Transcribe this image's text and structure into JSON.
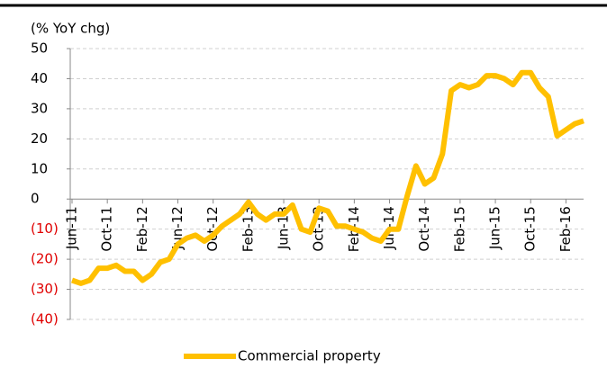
{
  "chart_data": {
    "type": "line",
    "title": "(% YoY chg)",
    "categories": [
      "Jun-11",
      null,
      null,
      null,
      "Oct-11",
      null,
      null,
      null,
      "Feb-12",
      null,
      null,
      null,
      "Jun-12",
      null,
      null,
      null,
      "Oct-12",
      null,
      null,
      null,
      "Feb-13",
      null,
      null,
      null,
      "Jun-13",
      null,
      null,
      null,
      "Oct-13",
      null,
      null,
      null,
      "Feb-14",
      null,
      null,
      null,
      "Jun-14",
      null,
      null,
      null,
      "Oct-14",
      null,
      null,
      null,
      "Feb-15",
      null,
      null,
      null,
      "Jun-15",
      null,
      null,
      null,
      "Oct-15",
      null,
      null,
      null,
      "Feb-16",
      null,
      null
    ],
    "series": [
      {
        "name": "Commercial property",
        "color": "#ffc000",
        "values": [
          -27,
          -28,
          -27,
          -23,
          -23,
          -22,
          -24,
          -24,
          -27,
          -25,
          -21,
          -20,
          -15,
          -13,
          -12,
          -14,
          -12,
          -9,
          -7,
          -5,
          -1,
          -5,
          -7,
          -5,
          -5,
          -2,
          -10,
          -11,
          -3,
          -4,
          -9,
          -9,
          -10,
          -11,
          -13,
          -14,
          -10,
          -10,
          1,
          11,
          5,
          7,
          15,
          36,
          38,
          37,
          38,
          41,
          41,
          40,
          38,
          42,
          42,
          37,
          34,
          21,
          23,
          25,
          26
        ]
      }
    ],
    "ylim": [
      -40,
      50
    ],
    "yticks": [
      {
        "value": -40,
        "label": "(40)"
      },
      {
        "value": -30,
        "label": "(30)"
      },
      {
        "value": -20,
        "label": "(20)"
      },
      {
        "value": -10,
        "label": "(10)"
      },
      0,
      10,
      20,
      30,
      40,
      50
    ],
    "grid": true,
    "legend": "bottom"
  }
}
